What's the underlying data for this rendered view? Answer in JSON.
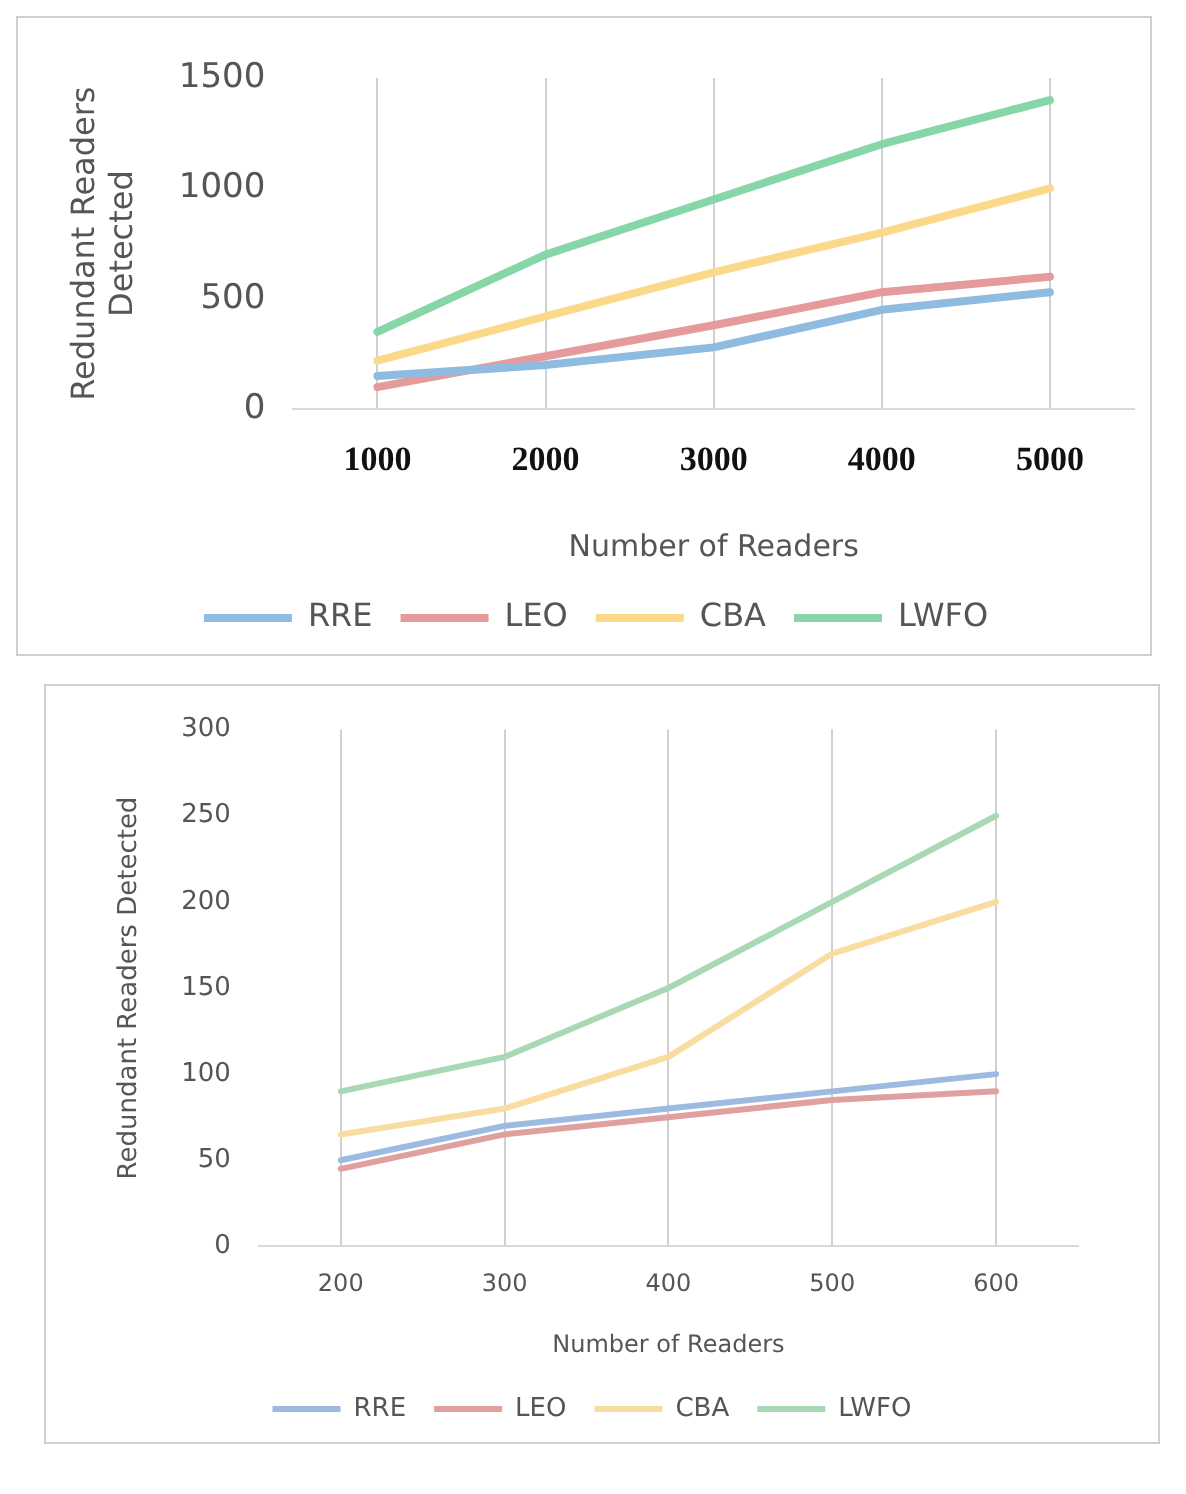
{
  "chart_data": [
    {
      "type": "line",
      "xlabel": "Number of Readers",
      "ylabel": "Redundant Readers Detected",
      "categories": [
        "1000",
        "2000",
        "3000",
        "4000",
        "5000"
      ],
      "series": [
        {
          "name": "RRE",
          "color": "#8fbbe0",
          "values": [
            150,
            200,
            280,
            450,
            530
          ]
        },
        {
          "name": "LEO",
          "color": "#e59a9b",
          "values": [
            100,
            240,
            380,
            530,
            600
          ]
        },
        {
          "name": "CBA",
          "color": "#fbd98b",
          "values": [
            220,
            420,
            620,
            800,
            1000
          ]
        },
        {
          "name": "LWFO",
          "color": "#86d6a8",
          "values": [
            350,
            700,
            950,
            1200,
            1400
          ]
        }
      ],
      "ylim": [
        0,
        1500
      ],
      "yticks": [
        0,
        500,
        1000,
        1500
      ],
      "grid": "x",
      "legend": "bottom",
      "marker": "none",
      "line_style": "solid"
    },
    {
      "type": "line",
      "xlabel": "Number of Readers",
      "ylabel": "Redundant Readers Detected",
      "categories": [
        "200",
        "300",
        "400",
        "500",
        "600"
      ],
      "series": [
        {
          "name": "RRE",
          "color": "#9dbbe0",
          "values": [
            50,
            70,
            80,
            90,
            100
          ]
        },
        {
          "name": "LEO",
          "color": "#e0a09f",
          "values": [
            45,
            65,
            75,
            85,
            90
          ]
        },
        {
          "name": "CBA",
          "color": "#f9dca0",
          "values": [
            65,
            80,
            110,
            170,
            200
          ]
        },
        {
          "name": "LWFO",
          "color": "#a9d9b4",
          "values": [
            90,
            110,
            150,
            200,
            250
          ]
        }
      ],
      "ylim": [
        0,
        300
      ],
      "yticks": [
        0,
        50,
        100,
        150,
        200,
        250,
        300
      ],
      "grid": "x",
      "legend": "bottom",
      "marker": "none",
      "line_style": "solid"
    }
  ]
}
